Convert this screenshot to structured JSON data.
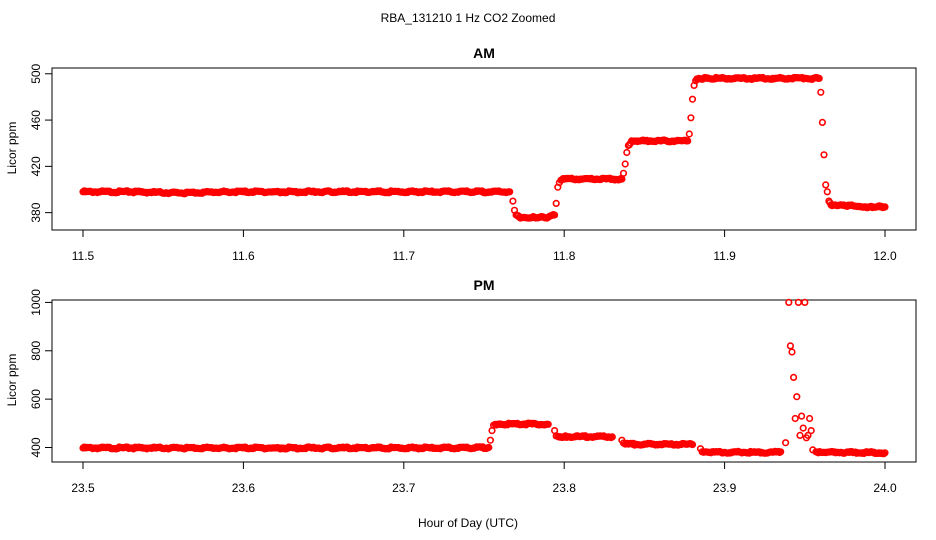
{
  "figure": {
    "title": "RBA_131210  1 Hz CO2 Zoomed",
    "xlabel": "Hour of Day (UTC)",
    "colors": {
      "points": "#ff0000",
      "axes": "#000000",
      "background": "#ffffff"
    }
  },
  "chart_data": [
    {
      "type": "scatter",
      "title": "AM",
      "xlabel": "",
      "ylabel": "Licor ppm",
      "xlim": [
        11.5,
        12.0
      ],
      "ylim": [
        365,
        505
      ],
      "xticks": [
        11.5,
        11.6,
        11.7,
        11.8,
        11.9,
        12.0
      ],
      "xtick_labels": [
        "11.5",
        "11.6",
        "11.7",
        "11.8",
        "11.9",
        "12.0"
      ],
      "yticks": [
        380,
        420,
        460,
        500
      ],
      "ytick_labels": [
        "380",
        "420",
        "460",
        "500"
      ],
      "grid": false,
      "legend": "none",
      "series": [
        {
          "x": [
            11.5,
            11.53,
            11.56,
            11.59,
            11.62,
            11.65,
            11.68,
            11.71,
            11.74,
            11.766,
            11.768,
            11.769,
            11.77,
            11.772,
            11.775,
            11.78,
            11.785,
            11.79,
            11.794,
            11.795,
            11.796,
            11.797,
            11.798,
            11.8,
            11.81,
            11.82,
            11.83,
            11.836,
            11.837,
            11.838,
            11.839,
            11.84,
            11.842,
            11.85,
            11.86,
            11.87,
            11.877,
            11.878,
            11.879,
            11.88,
            11.881,
            11.882,
            11.884,
            11.89,
            11.9,
            11.91,
            11.92,
            11.93,
            11.94,
            11.95,
            11.959,
            11.96,
            11.961,
            11.962,
            11.963,
            11.964,
            11.965,
            11.967,
            11.97,
            11.975,
            11.98,
            11.985,
            11.99,
            11.995,
            12.0
          ],
          "y": [
            398,
            398,
            397,
            398,
            398,
            398,
            398,
            398,
            398,
            398,
            390,
            382,
            378,
            376,
            376,
            376,
            376,
            376,
            378,
            388,
            402,
            406,
            408,
            409,
            409,
            409,
            409,
            409,
            414,
            422,
            432,
            438,
            442,
            442,
            442,
            442,
            442,
            448,
            462,
            478,
            490,
            494,
            496,
            496,
            496,
            496,
            496,
            496,
            496,
            496,
            496,
            484,
            458,
            430,
            404,
            398,
            390,
            386,
            386,
            386,
            386,
            385,
            385,
            385,
            385
          ]
        }
      ]
    },
    {
      "type": "scatter",
      "title": "PM",
      "xlabel": "Hour of Day (UTC)",
      "ylabel": "Licor ppm",
      "xlim": [
        23.5,
        24.0
      ],
      "ylim": [
        340,
        1010
      ],
      "xticks": [
        23.5,
        23.6,
        23.7,
        23.8,
        23.9,
        24.0
      ],
      "xtick_labels": [
        "23.5",
        "23.6",
        "23.7",
        "23.8",
        "23.9",
        "24.0"
      ],
      "yticks": [
        400,
        600,
        800,
        1000
      ],
      "ytick_labels": [
        "400",
        "600",
        "800",
        "1000"
      ],
      "grid": false,
      "legend": "none",
      "series": [
        {
          "x": [
            23.5,
            23.53,
            23.56,
            23.59,
            23.62,
            23.65,
            23.68,
            23.71,
            23.74,
            23.753,
            23.754,
            23.755,
            23.756,
            23.757,
            23.76,
            23.77,
            23.78,
            23.79,
            23.794,
            23.795,
            23.796,
            23.8,
            23.81,
            23.82,
            23.83,
            23.836,
            23.837,
            23.838,
            23.84,
            23.85,
            23.86,
            23.87,
            23.88,
            23.885,
            23.886,
            23.887,
            23.89,
            23.9,
            23.91,
            23.92,
            23.93,
            23.935,
            23.938,
            23.94,
            23.941,
            23.942,
            23.943,
            23.944,
            23.945,
            23.946,
            23.947,
            23.948,
            23.949,
            23.95,
            23.951,
            23.952,
            23.953,
            23.954,
            23.955,
            23.957,
            23.96,
            23.97,
            23.98,
            23.99,
            24.0
          ],
          "y": [
            398,
            398,
            398,
            398,
            398,
            398,
            398,
            398,
            398,
            400,
            430,
            470,
            492,
            496,
            497,
            497,
            497,
            496,
            470,
            448,
            446,
            445,
            445,
            445,
            444,
            430,
            418,
            414,
            414,
            414,
            413,
            413,
            412,
            395,
            382,
            380,
            380,
            380,
            380,
            380,
            380,
            382,
            420,
            1000,
            820,
            795,
            690,
            520,
            610,
            1000,
            450,
            530,
            480,
            1000,
            440,
            450,
            520,
            470,
            390,
            382,
            380,
            380,
            379,
            379,
            378
          ]
        }
      ]
    }
  ]
}
